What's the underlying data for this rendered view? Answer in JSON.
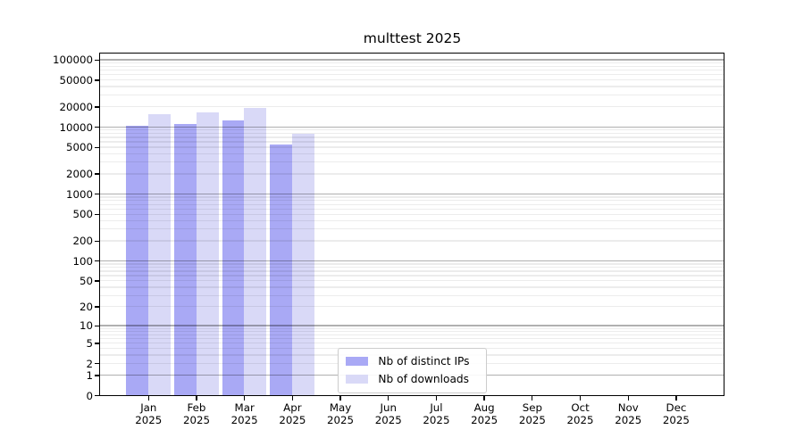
{
  "title": "multtest 2025",
  "chart_data": {
    "type": "bar",
    "title": "multtest 2025",
    "categories": [
      "Jan",
      "Feb",
      "Mar",
      "Apr",
      "May",
      "Jun",
      "Jul",
      "Aug",
      "Sep",
      "Oct",
      "Nov",
      "Dec"
    ],
    "year_label": "2025",
    "series": [
      {
        "name": "Nb of distinct IPs",
        "color": "#a9a9f5",
        "values": [
          10300,
          11000,
          12500,
          5500,
          null,
          null,
          null,
          null,
          null,
          null,
          null,
          null
        ]
      },
      {
        "name": "Nb of downloads",
        "color": "#d9d9f7",
        "values": [
          15600,
          16300,
          19500,
          8000,
          null,
          null,
          null,
          null,
          null,
          null,
          null,
          null
        ]
      }
    ],
    "y_ticks": [
      0,
      1,
      2,
      5,
      10,
      20,
      50,
      100,
      200,
      500,
      1000,
      2000,
      5000,
      10000,
      20000,
      50000,
      100000
    ],
    "ylim": [
      0,
      125000
    ],
    "y_scale": "log10(value+1)",
    "xlabel": "",
    "ylabel": "",
    "grid": {
      "horizontal": true,
      "major_at": "powers of 10",
      "minor_at": "2-9 per decade",
      "major_color": "#b0b0b0",
      "minor_color": "#ececec",
      "drawn_over_bars": true
    },
    "legend_position": "lower center",
    "plot_background": "#ffffff",
    "spine_color": "#000000"
  }
}
